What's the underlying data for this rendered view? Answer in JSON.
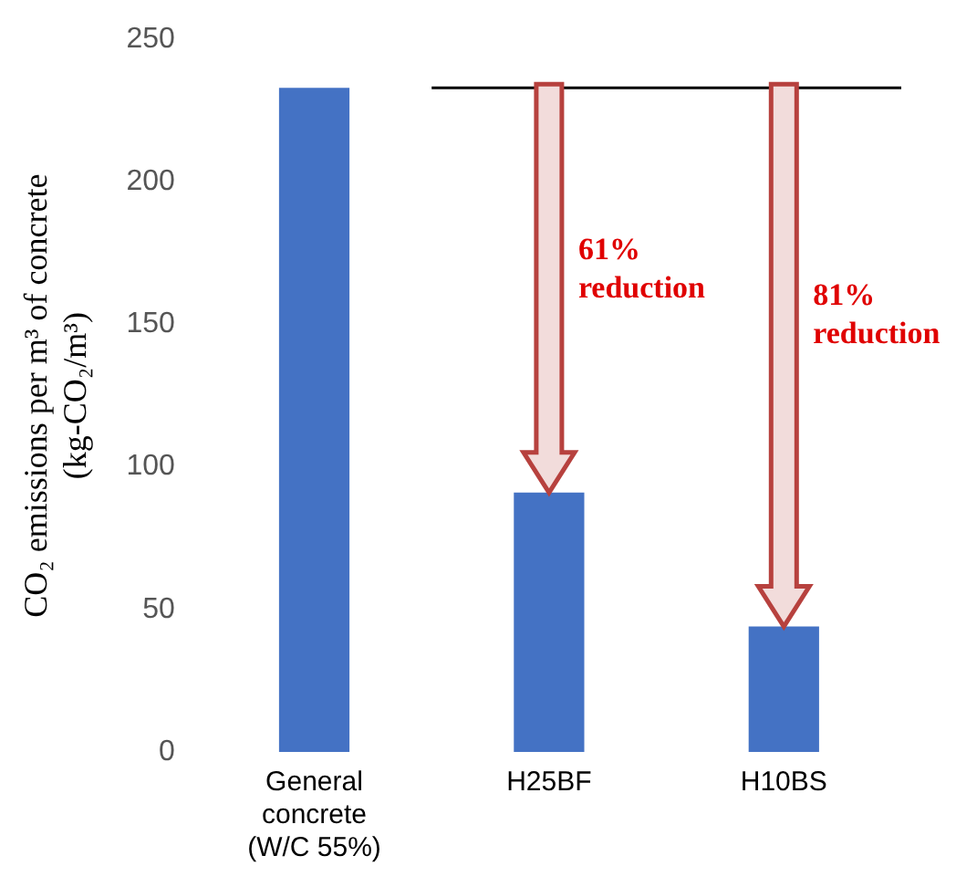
{
  "chart_data": {
    "type": "bar",
    "ylabel": "CO₂ emissions per m³ of concrete\n(kg-CO₂/m³)",
    "categories": [
      "General\nconcrete\n(W/C 55%)",
      "H25BF",
      "H10BS"
    ],
    "values": [
      233,
      91,
      44
    ],
    "color": "#4472c4",
    "ylim": [
      0,
      250
    ],
    "yticks": [
      0,
      50,
      100,
      150,
      200,
      250
    ],
    "grid": false,
    "legend": false,
    "ref_lines": [
      {
        "axis": "y",
        "value": 233,
        "color": "#000000"
      }
    ],
    "annotations": [
      "61% reduction",
      "81% reduction"
    ]
  }
}
